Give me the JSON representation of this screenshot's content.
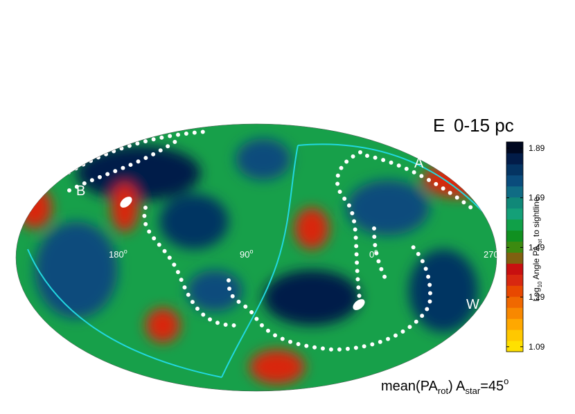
{
  "panel": {
    "letter": "E",
    "title": "0-15 pc"
  },
  "map": {
    "point_labels": [
      "B",
      "A",
      "W"
    ],
    "longitude_labels": [
      {
        "text": "180",
        "sup": "o"
      },
      {
        "text": "90",
        "sup": "o"
      },
      {
        "text": "0",
        "sup": "o"
      },
      {
        "text": "270",
        "sup": ""
      }
    ]
  },
  "colorbar": {
    "label": {
      "pre": "Log",
      "sub1": "10",
      "mid": " Angle PA",
      "sub2": "rot",
      "post": " to sightline"
    },
    "lim": [
      1.07,
      1.915
    ],
    "ticks": [
      1.09,
      1.29,
      1.49,
      1.69,
      1.89
    ],
    "colors": [
      "#ffe000",
      "#ffc800",
      "#ffa800",
      "#f88800",
      "#f06800",
      "#e84800",
      "#d82810",
      "#c81010",
      "#806010",
      "#3c8a10",
      "#109020",
      "#10a048",
      "#14a078",
      "#108878",
      "#106c84",
      "#0a4c7c",
      "#043462",
      "#021c48",
      "#000820"
    ]
  },
  "caption": {
    "pre": "mean(PA",
    "sub1": "rot",
    "mid": ")  A",
    "sub2": "star",
    "post": "=45",
    "sup": "o"
  }
}
